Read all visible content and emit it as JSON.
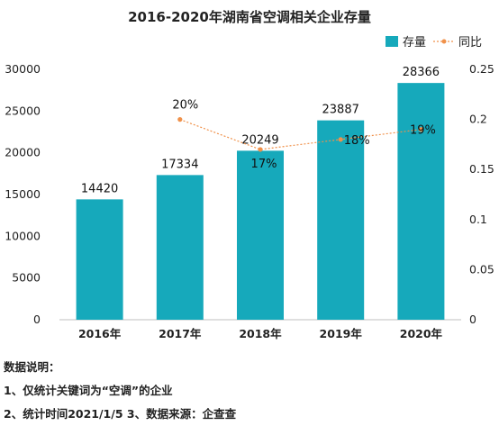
{
  "chart_data": {
    "type": "bar",
    "title": "2016-2020年湖南省空调相关企业存量",
    "categories": [
      "2016年",
      "2017年",
      "2018年",
      "2019年",
      "2020年"
    ],
    "series": [
      {
        "name": "存量",
        "type": "bar",
        "axis": "left",
        "values": [
          14420,
          17334,
          20249,
          23887,
          28366
        ],
        "color": "#16A9BB"
      },
      {
        "name": "同比",
        "type": "line",
        "axis": "right",
        "values": [
          null,
          0.2,
          0.17,
          0.18,
          0.19
        ],
        "labels": [
          "",
          "20%",
          "17%",
          "18%",
          "19%"
        ],
        "color": "#F0914A",
        "style": "dashed"
      }
    ],
    "y_left": {
      "ylim": [
        0,
        30000
      ],
      "ticks": [
        "0",
        "5000",
        "10000",
        "15000",
        "20000",
        "25000",
        "30000"
      ]
    },
    "y_right": {
      "ylim": [
        0,
        0.25
      ],
      "ticks": [
        "0",
        "0.05",
        "0.1",
        "0.15",
        "0.2",
        "0.25"
      ]
    },
    "legend": "top-right",
    "grid": false
  },
  "notes": {
    "heading": "数据说明：",
    "line1": "1、仅统计关键词为“空调”的企业",
    "line2": "2、统计时间2021/1/5   3、数据来源：企查查"
  }
}
